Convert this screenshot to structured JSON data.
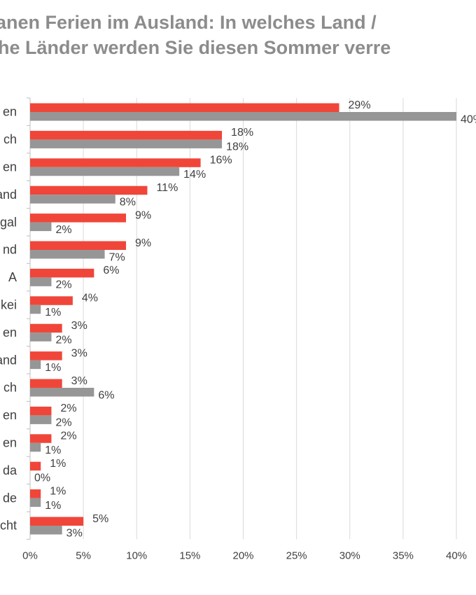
{
  "title": {
    "line1": "anen Ferien im Ausland: In welches Land /",
    "line2": "he Länder werden Sie diesen Sommer verre"
  },
  "colors": {
    "series_a": "#f0463a",
    "series_b": "#969696",
    "grid": "#d9d9d9",
    "text": "#404040",
    "title": "#8c8c8c"
  },
  "chart_data": {
    "type": "bar",
    "orientation": "horizontal",
    "categories": [
      "en",
      "ch",
      "en",
      "and",
      "gal",
      "nd",
      "A",
      "kei",
      "en",
      "and",
      "ch",
      "en",
      "en",
      "da",
      "de",
      "cht"
    ],
    "series": [
      {
        "color": "#f0463a",
        "values": [
          29,
          18,
          16,
          11,
          9,
          9,
          6,
          4,
          3,
          3,
          3,
          2,
          2,
          1,
          1,
          5
        ]
      },
      {
        "color": "#969696",
        "values": [
          40,
          18,
          14,
          8,
          2,
          7,
          2,
          1,
          2,
          1,
          6,
          2,
          1,
          0,
          1,
          3
        ]
      }
    ],
    "value_suffix": "%",
    "xlim": [
      0,
      40
    ],
    "xticks": [
      "0%",
      "5%",
      "10%",
      "15%",
      "20%",
      "25%",
      "30%",
      "35%",
      "40%"
    ],
    "grid": "vertical",
    "legend": "none"
  }
}
